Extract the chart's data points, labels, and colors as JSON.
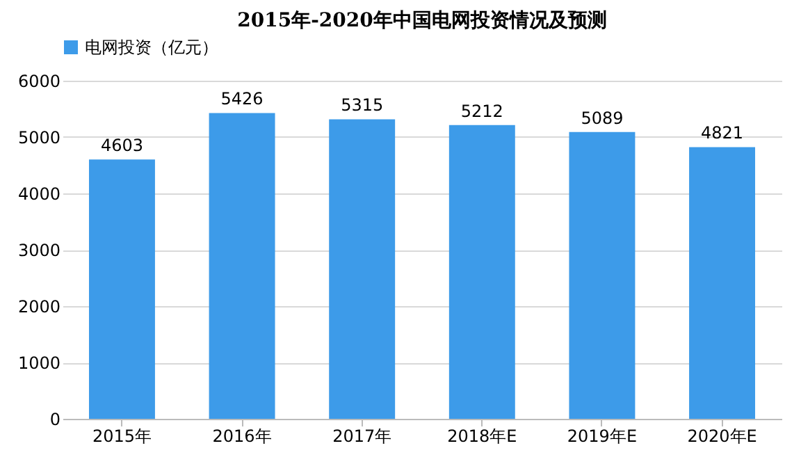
{
  "chart_data": {
    "type": "bar",
    "title": "2015年-2020年中国电网投资情况及预测",
    "categories": [
      "2015年",
      "2016年",
      "2017年",
      "2018年E",
      "2019年E",
      "2020年E"
    ],
    "series": [
      {
        "name": "电网投资（亿元）",
        "color": "#3d9be9",
        "values": [
          4603,
          5426,
          5315,
          5212,
          5089,
          4821
        ]
      }
    ],
    "ylim": [
      0,
      6000
    ],
    "yticks": [
      0,
      1000,
      2000,
      3000,
      4000,
      5000,
      6000
    ],
    "grid": "y",
    "legend": "top",
    "data_labels": true
  }
}
